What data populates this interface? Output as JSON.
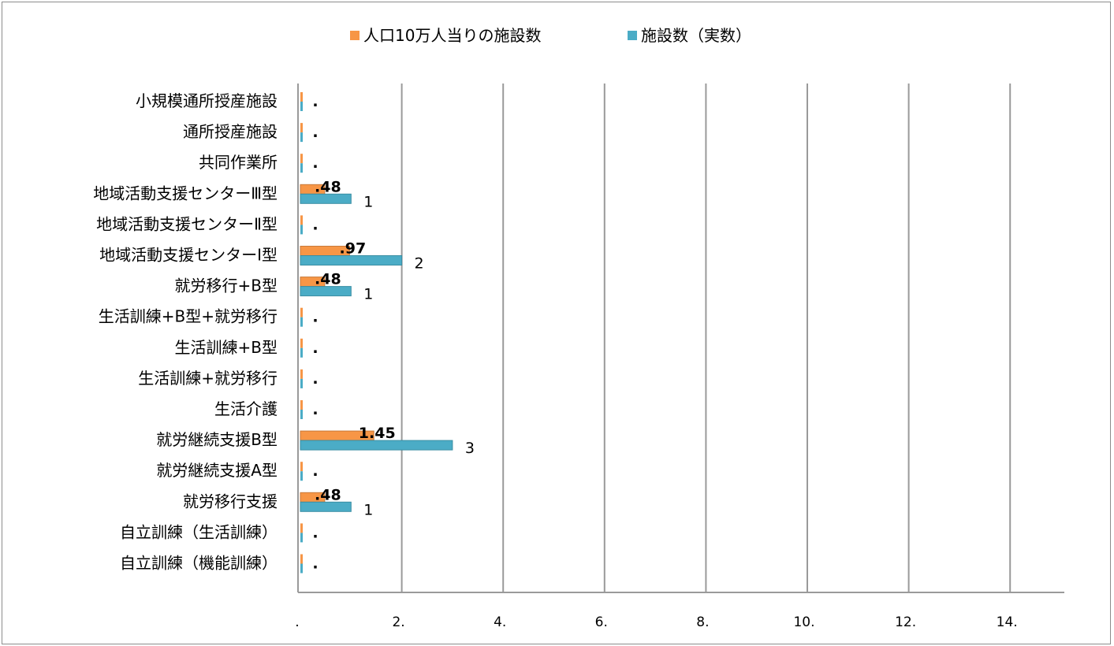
{
  "chart_data": {
    "type": "bar",
    "orientation": "horizontal",
    "legend_position": "top",
    "grid": true,
    "xlim": [
      0,
      15
    ],
    "x_ticks": [
      {
        "value": 0,
        "label": "."
      },
      {
        "value": 2,
        "label": "2."
      },
      {
        "value": 4,
        "label": "4."
      },
      {
        "value": 6,
        "label": "6."
      },
      {
        "value": 8,
        "label": "8."
      },
      {
        "value": 10,
        "label": "10."
      },
      {
        "value": 12,
        "label": "12."
      },
      {
        "value": 14,
        "label": "14."
      }
    ],
    "categories": [
      "小規模通所授産施設",
      "通所授産施設",
      "共同作業所",
      "地域活動支援センターⅢ型",
      "地域活動支援センターⅡ型",
      "地域活動支援センターⅠ型",
      "就労移行+B型",
      "生活訓練+B型+就労移行",
      "生活訓練+B型",
      "生活訓練+就労移行",
      "生活介護",
      "就労継続支援B型",
      "就労継続支援A型",
      "就労移行支援",
      "自立訓練（生活訓練）",
      "自立訓練（機能訓練）"
    ],
    "series": [
      {
        "name": "人口10万人当りの施設数",
        "color": "#f79646",
        "values": [
          0,
          0,
          0,
          0.48,
          0,
          0.97,
          0.48,
          0,
          0,
          0,
          0,
          1.45,
          0,
          0.48,
          0,
          0
        ],
        "labels": [
          ".",
          ".",
          ".",
          ".48",
          ".",
          ".97",
          ".48",
          ".",
          ".",
          ".",
          ".",
          "1.45",
          ".",
          ".48",
          ".",
          "."
        ]
      },
      {
        "name": "施設数（実数）",
        "color": "#4bacc6",
        "values": [
          0,
          0,
          0,
          1,
          0,
          2,
          1,
          0,
          0,
          0,
          0,
          3,
          0,
          1,
          0,
          0
        ],
        "labels": [
          "",
          "",
          "",
          "1",
          "",
          "2",
          "1",
          "",
          "",
          "",
          "",
          "3",
          "",
          "1",
          "",
          ""
        ]
      }
    ]
  }
}
